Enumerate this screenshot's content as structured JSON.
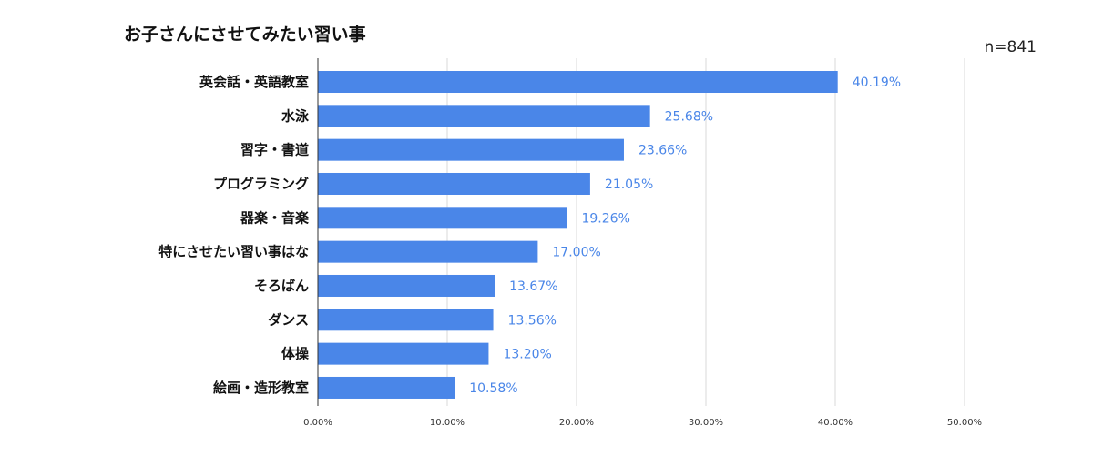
{
  "chart_data": {
    "type": "bar",
    "orientation": "horizontal",
    "title": "お子さんにさせてみたい習い事",
    "sample_size_label": "n=841",
    "categories": [
      "英会話・英語教室",
      "水泳",
      "習字・書道",
      "プログラミング",
      "器楽・音楽",
      "特にさせたい習い事はな",
      "そろばん",
      "ダンス",
      "体操",
      "絵画・造形教室"
    ],
    "values": [
      40.19,
      25.68,
      23.66,
      21.05,
      19.26,
      17.0,
      13.67,
      13.56,
      13.2,
      10.58
    ],
    "value_labels": [
      "40.19%",
      "25.68%",
      "23.66%",
      "21.05%",
      "19.26%",
      "17.00%",
      "13.67%",
      "13.56%",
      "13.20%",
      "10.58%"
    ],
    "xlim": [
      0,
      50
    ],
    "x_ticks": [
      0,
      10,
      20,
      30,
      40,
      50
    ],
    "x_tick_labels": [
      "0.00%",
      "10.00%",
      "20.00%",
      "30.00%",
      "40.00%",
      "50.00%"
    ],
    "grid": true,
    "bar_color": "#4a86e8",
    "value_label_color": "#4a86e8"
  }
}
